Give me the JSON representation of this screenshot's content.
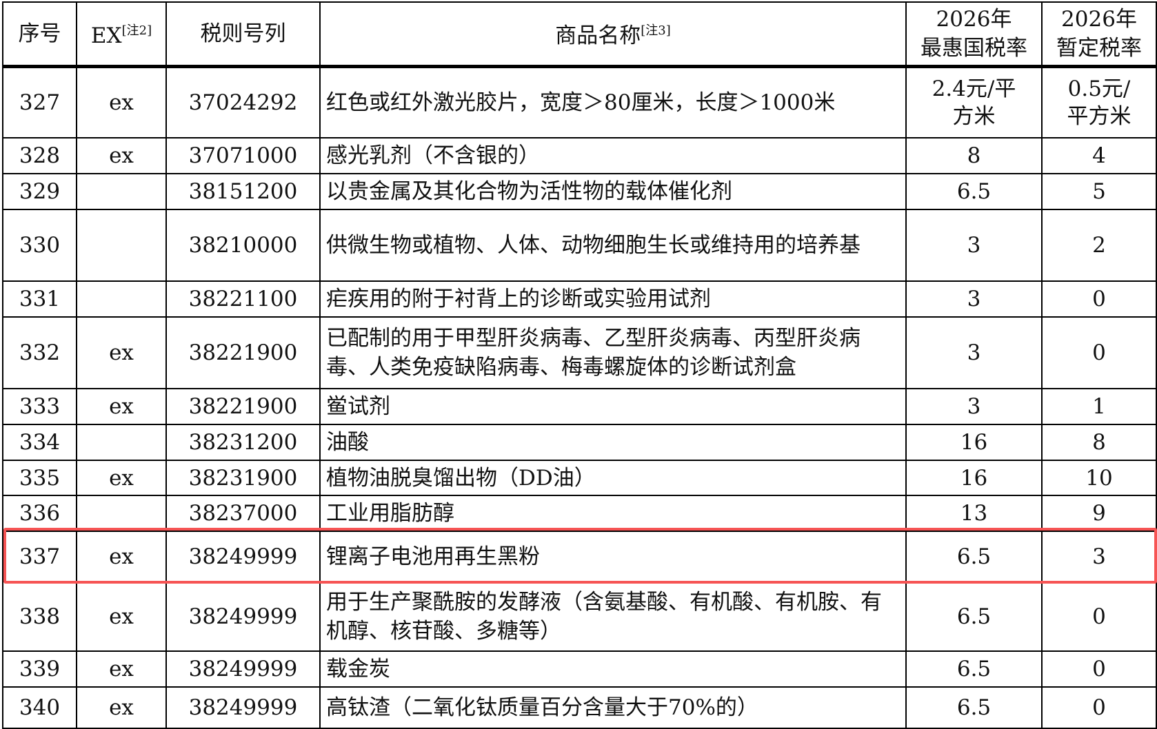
{
  "header": {
    "seq": "序号",
    "ex": "EX",
    "ex_note": "[注2]",
    "code": "税则号列",
    "name": "商品名称",
    "name_note": "[注3]",
    "mfn_line1": "2026年",
    "mfn_line2": "最惠国税率",
    "prov_line1": "2026年",
    "prov_line2": "暂定税率"
  },
  "highlight_color": "#f65454",
  "highlighted_row": "337",
  "rows": [
    {
      "seq": "327",
      "ex": "ex",
      "code": "37024292",
      "name": "红色或红外激光胶片，宽度＞80厘米，长度＞1000米",
      "mfn": "2.4元/平方米",
      "prov": "0.5元/平方米"
    },
    {
      "seq": "328",
      "ex": "ex",
      "code": "37071000",
      "name": "感光乳剂（不含银的）",
      "mfn": "8",
      "prov": "4"
    },
    {
      "seq": "329",
      "ex": "",
      "code": "38151200",
      "name": "以贵金属及其化合物为活性物的载体催化剂",
      "mfn": "6.5",
      "prov": "5"
    },
    {
      "seq": "330",
      "ex": "",
      "code": "38210000",
      "name": "供微生物或植物、人体、动物细胞生长或维持用的培养基",
      "mfn": "3",
      "prov": "2"
    },
    {
      "seq": "331",
      "ex": "",
      "code": "38221100",
      "name": "疟疾用的附于衬背上的诊断或实验用试剂",
      "mfn": "3",
      "prov": "0"
    },
    {
      "seq": "332",
      "ex": "ex",
      "code": "38221900",
      "name": "已配制的用于甲型肝炎病毒、乙型肝炎病毒、丙型肝炎病毒、人类免疫缺陷病毒、梅毒螺旋体的诊断试剂盒",
      "mfn": "3",
      "prov": "0"
    },
    {
      "seq": "333",
      "ex": "ex",
      "code": "38221900",
      "name": "鲎试剂",
      "mfn": "3",
      "prov": "1"
    },
    {
      "seq": "334",
      "ex": "",
      "code": "38231200",
      "name": "油酸",
      "mfn": "16",
      "prov": "8"
    },
    {
      "seq": "335",
      "ex": "ex",
      "code": "38231900",
      "name": "植物油脱臭馏出物（DD油）",
      "mfn": "16",
      "prov": "10"
    },
    {
      "seq": "336",
      "ex": "",
      "code": "38237000",
      "name": "工业用脂肪醇",
      "mfn": "13",
      "prov": "9"
    },
    {
      "seq": "337",
      "ex": "ex",
      "code": "38249999",
      "name": "锂离子电池用再生黑粉",
      "mfn": "6.5",
      "prov": "3"
    },
    {
      "seq": "338",
      "ex": "ex",
      "code": "38249999",
      "name": "用于生产聚酰胺的发酵液（含氨基酸、有机酸、有机胺、有机醇、核苷酸、多糖等）",
      "mfn": "6.5",
      "prov": "0"
    },
    {
      "seq": "339",
      "ex": "ex",
      "code": "38249999",
      "name": "载金炭",
      "mfn": "6.5",
      "prov": "0"
    },
    {
      "seq": "340",
      "ex": "ex",
      "code": "38249999",
      "name": "高钛渣（二氧化钛质量百分含量大于70%的）",
      "mfn": "6.5",
      "prov": "0"
    }
  ]
}
